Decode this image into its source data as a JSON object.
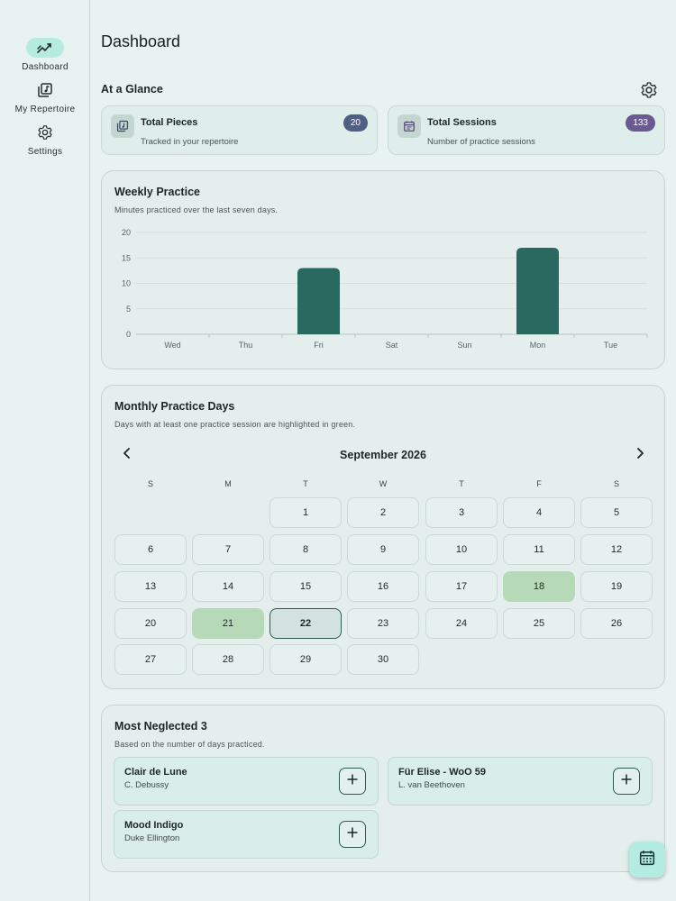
{
  "sidebar": {
    "items": [
      {
        "label": "Dashboard",
        "icon": "trend-chart-icon",
        "active": true
      },
      {
        "label": "My Repertoire",
        "icon": "music-library-icon",
        "active": false
      },
      {
        "label": "Settings",
        "icon": "gear-icon",
        "active": false
      }
    ]
  },
  "header": {
    "title": "Dashboard"
  },
  "glance": {
    "title": "At a Glance",
    "cards": [
      {
        "title": "Total Pieces",
        "subtitle": "Tracked in your repertoire",
        "count": "20",
        "badge_color": "#4f5f85"
      },
      {
        "title": "Total Sessions",
        "subtitle": "Number of practice sessions",
        "count": "133",
        "badge_color": "#6a5a92"
      }
    ]
  },
  "weekly": {
    "title": "Weekly Practice",
    "subtitle": "Minutes practiced over the last seven days."
  },
  "chart_data": {
    "type": "bar",
    "categories": [
      "Wed",
      "Thu",
      "Fri",
      "Sat",
      "Sun",
      "Mon",
      "Tue"
    ],
    "values": [
      0,
      0,
      13,
      0,
      0,
      17,
      0
    ],
    "ylim": [
      0,
      20
    ],
    "yticks": [
      0,
      5,
      10,
      15,
      20
    ],
    "grid": true,
    "bar_color": "#2a6960"
  },
  "monthly": {
    "title": "Monthly Practice Days",
    "subtitle": "Days with at least one practice session are highlighted in green.",
    "month_label": "September 2026",
    "weekdays": [
      "S",
      "M",
      "T",
      "W",
      "T",
      "F",
      "S"
    ],
    "first_weekday": 2,
    "days_in_month": 30,
    "practiced_days": [
      18,
      21
    ],
    "today": 22
  },
  "neglected": {
    "title": "Most Neglected 3",
    "subtitle": "Based on the number of days practiced.",
    "pieces": [
      {
        "title": "Clair de Lune",
        "composer": "C. Debussy"
      },
      {
        "title": "Für Elise - WoO 59",
        "composer": "L. van Beethoven"
      },
      {
        "title": "Mood Indigo",
        "composer": "Duke Ellington"
      }
    ]
  }
}
